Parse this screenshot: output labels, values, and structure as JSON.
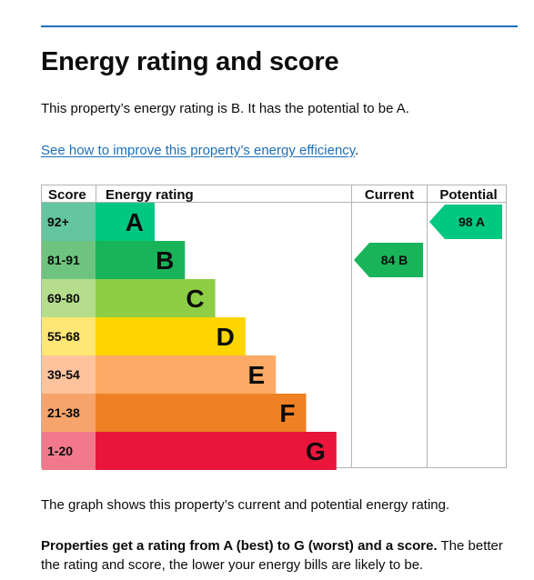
{
  "heading": "Energy rating and score",
  "summary": "This property’s energy rating is B. It has the potential to be A.",
  "improve_link": "See how to improve this property’s energy efficiency",
  "improve_link_suffix": ".",
  "graph_description": "The graph shows this property’s current and potential energy rating.",
  "rating_explanation": {
    "bold": "Properties get a rating from A (best) to G (worst) and a score.",
    "rest": " The better the rating and score, the lower your energy bills are likely to be."
  },
  "chart_data": {
    "type": "bar",
    "headers": {
      "score": "Score",
      "rating": "Energy rating",
      "current": "Current",
      "potential": "Potential"
    },
    "bands": [
      {
        "score": "92+",
        "letter": "A",
        "score_color": "#63c6a0",
        "bar_color": "#00c781"
      },
      {
        "score": "81-91",
        "letter": "B",
        "score_color": "#6ec47f",
        "bar_color": "#19b459"
      },
      {
        "score": "69-80",
        "letter": "C",
        "score_color": "#b5dd8c",
        "bar_color": "#8dce46"
      },
      {
        "score": "55-68",
        "letter": "D",
        "score_color": "#ffe675",
        "bar_color": "#ffd500"
      },
      {
        "score": "39-54",
        "letter": "E",
        "score_color": "#fec39c",
        "bar_color": "#fcaa65"
      },
      {
        "score": "21-38",
        "letter": "F",
        "score_color": "#f6a46c",
        "bar_color": "#ef8023"
      },
      {
        "score": "1-20",
        "letter": "G",
        "score_color": "#f2798b",
        "bar_color": "#e9153b"
      }
    ],
    "current": {
      "score": 84,
      "letter": "B",
      "label": "84 B",
      "color": "#19b459"
    },
    "potential": {
      "score": 98,
      "letter": "A",
      "label": "98 A",
      "color": "#00c781"
    }
  }
}
